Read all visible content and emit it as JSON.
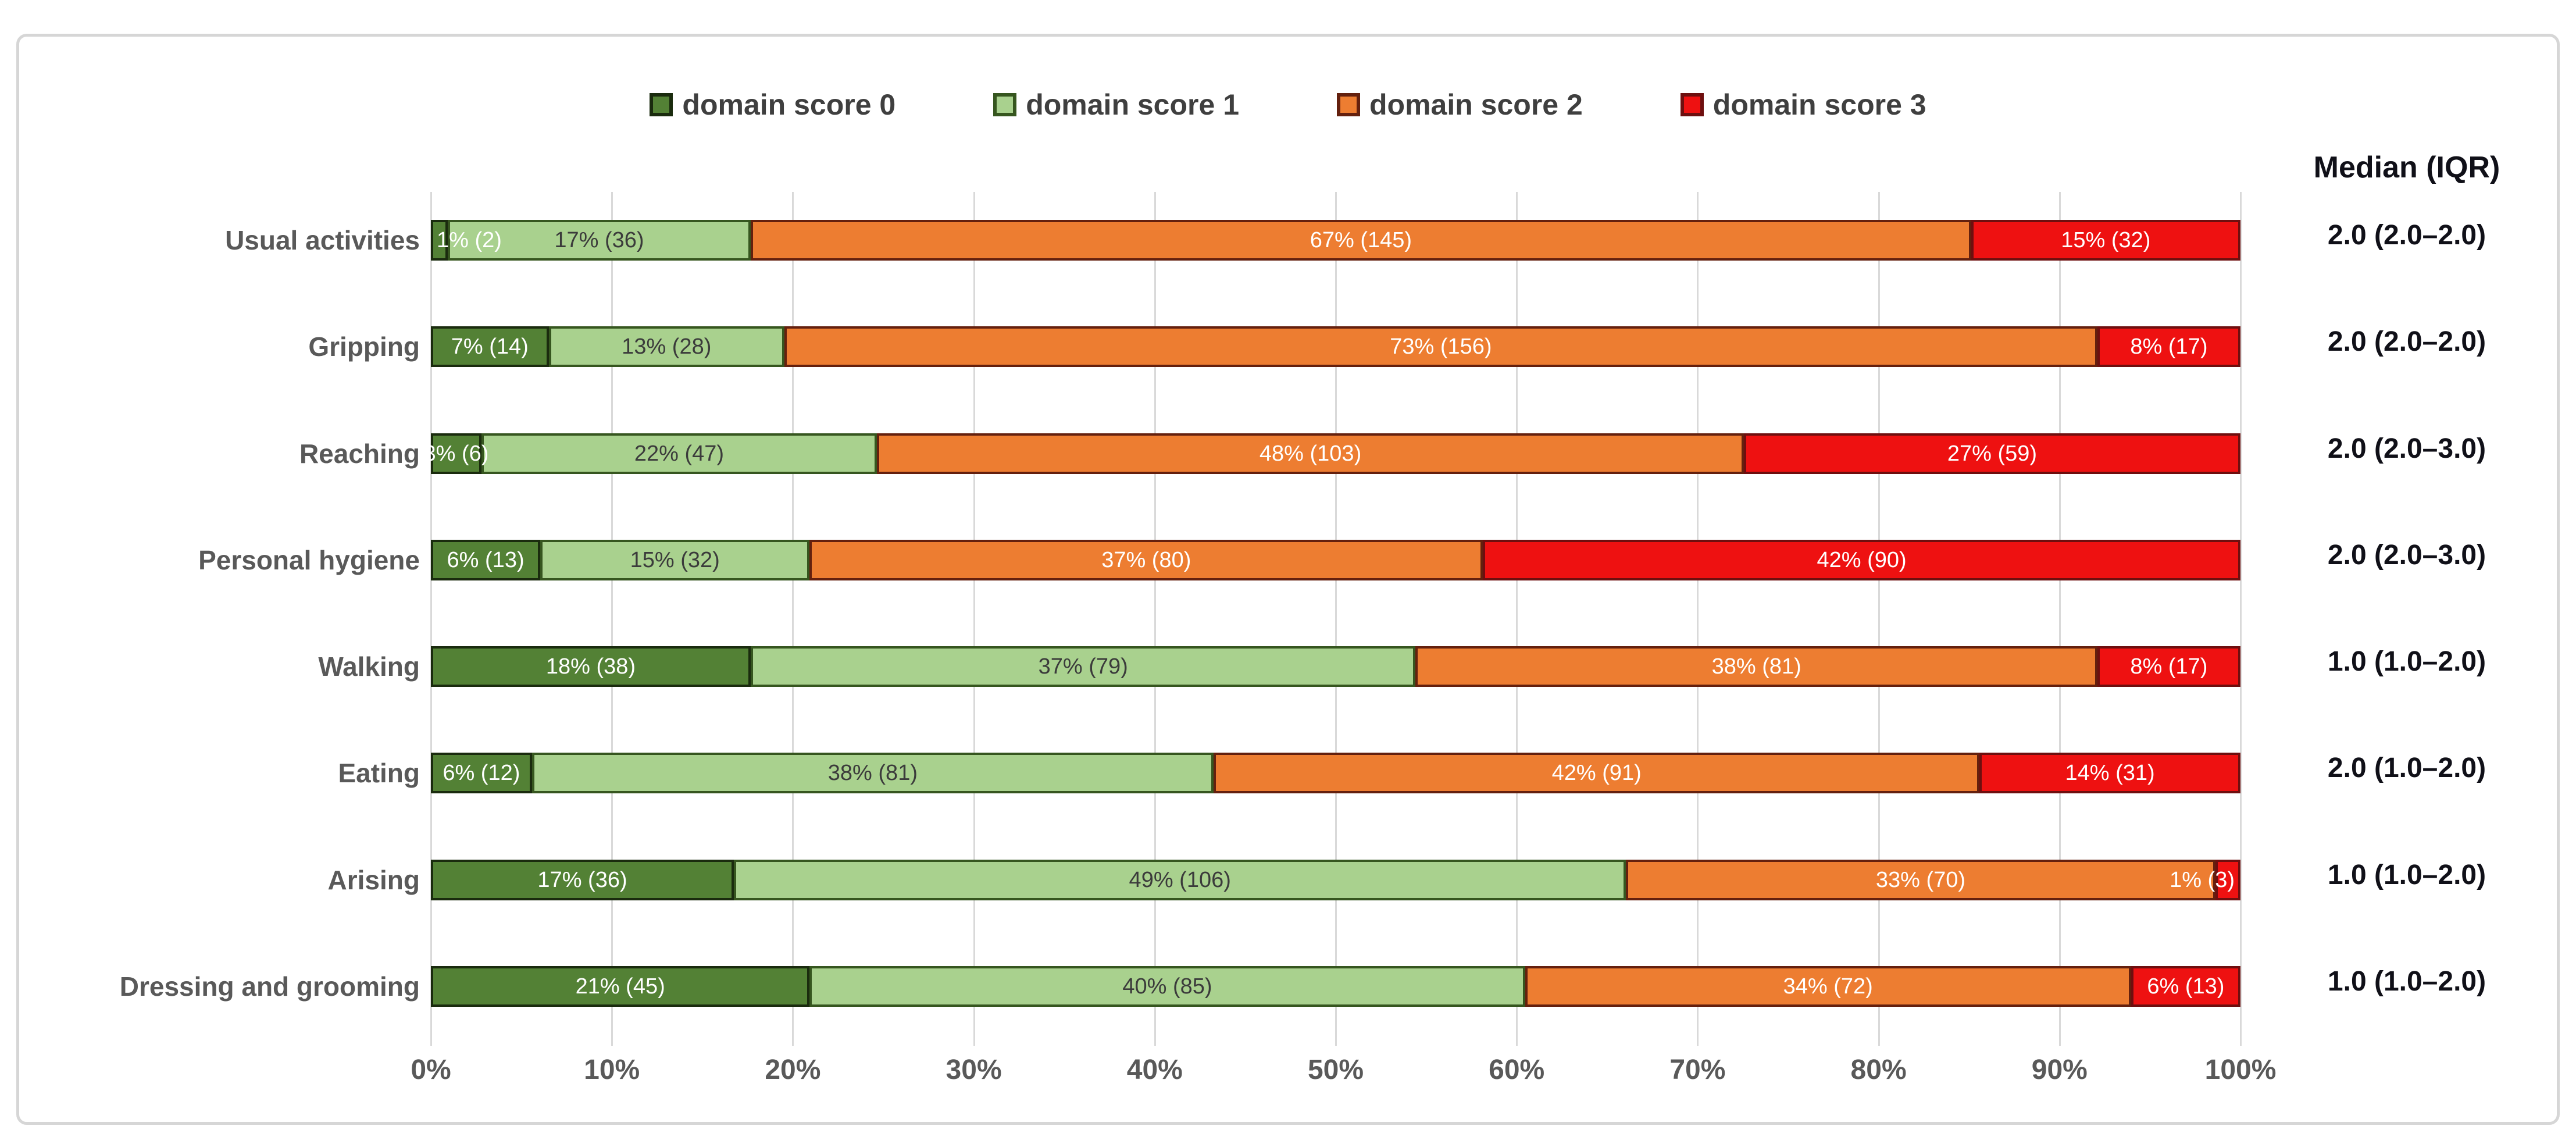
{
  "chart_data": {
    "type": "bar",
    "orientation": "horizontal-stacked",
    "title": "",
    "xlabel": "",
    "ylabel": "",
    "x_ticks": [
      "0%",
      "10%",
      "20%",
      "30%",
      "40%",
      "50%",
      "60%",
      "70%",
      "80%",
      "90%",
      "100%"
    ],
    "grid": "vertical",
    "legend_position": "top",
    "legend": [
      {
        "label": "domain score 0",
        "fill": "#538135",
        "border": "#1a2b0e",
        "label_color": "#ffffff"
      },
      {
        "label": "domain score 1",
        "fill": "#a9d18e",
        "border": "#36561f",
        "label_color": "#3b3b3b"
      },
      {
        "label": "domain score 2",
        "fill": "#ed7d31",
        "border": "#64200e",
        "label_color": "#ffffff"
      },
      {
        "label": "domain score 3",
        "fill": "#ee1111",
        "border": "#6e0f0f",
        "label_color": "#ffffff"
      }
    ],
    "median_header": "Median (IQR)",
    "rows": [
      {
        "category": "Usual activities",
        "median_iqr": "2.0 (2.0–2.0)",
        "segments": [
          {
            "pct": 1,
            "count": 2
          },
          {
            "pct": 17,
            "count": 36
          },
          {
            "pct": 67,
            "count": 145
          },
          {
            "pct": 15,
            "count": 32
          }
        ]
      },
      {
        "category": "Gripping",
        "median_iqr": "2.0 (2.0–2.0)",
        "segments": [
          {
            "pct": 7,
            "count": 14
          },
          {
            "pct": 13,
            "count": 28
          },
          {
            "pct": 73,
            "count": 156
          },
          {
            "pct": 8,
            "count": 17
          }
        ]
      },
      {
        "category": "Reaching",
        "median_iqr": "2.0 (2.0–3.0)",
        "segments": [
          {
            "pct": 3,
            "count": 6
          },
          {
            "pct": 22,
            "count": 47
          },
          {
            "pct": 48,
            "count": 103
          },
          {
            "pct": 27,
            "count": 59
          }
        ]
      },
      {
        "category": "Personal hygiene",
        "median_iqr": "2.0 (2.0–3.0)",
        "segments": [
          {
            "pct": 6,
            "count": 13
          },
          {
            "pct": 15,
            "count": 32
          },
          {
            "pct": 37,
            "count": 80
          },
          {
            "pct": 42,
            "count": 90
          }
        ]
      },
      {
        "category": "Walking",
        "median_iqr": "1.0 (1.0–2.0)",
        "segments": [
          {
            "pct": 18,
            "count": 38
          },
          {
            "pct": 37,
            "count": 79
          },
          {
            "pct": 38,
            "count": 81
          },
          {
            "pct": 8,
            "count": 17
          }
        ]
      },
      {
        "category": "Eating",
        "median_iqr": "2.0 (1.0–2.0)",
        "segments": [
          {
            "pct": 6,
            "count": 12
          },
          {
            "pct": 38,
            "count": 81
          },
          {
            "pct": 42,
            "count": 91
          },
          {
            "pct": 14,
            "count": 31
          }
        ]
      },
      {
        "category": "Arising",
        "median_iqr": "1.0 (1.0–2.0)",
        "segments": [
          {
            "pct": 17,
            "count": 36
          },
          {
            "pct": 49,
            "count": 106
          },
          {
            "pct": 33,
            "count": 70
          },
          {
            "pct": 1,
            "count": 3
          }
        ]
      },
      {
        "category": "Dressing and grooming",
        "median_iqr": "1.0 (1.0–2.0)",
        "segments": [
          {
            "pct": 21,
            "count": 45
          },
          {
            "pct": 40,
            "count": 85
          },
          {
            "pct": 34,
            "count": 72
          },
          {
            "pct": 6,
            "count": 13
          }
        ]
      }
    ]
  }
}
